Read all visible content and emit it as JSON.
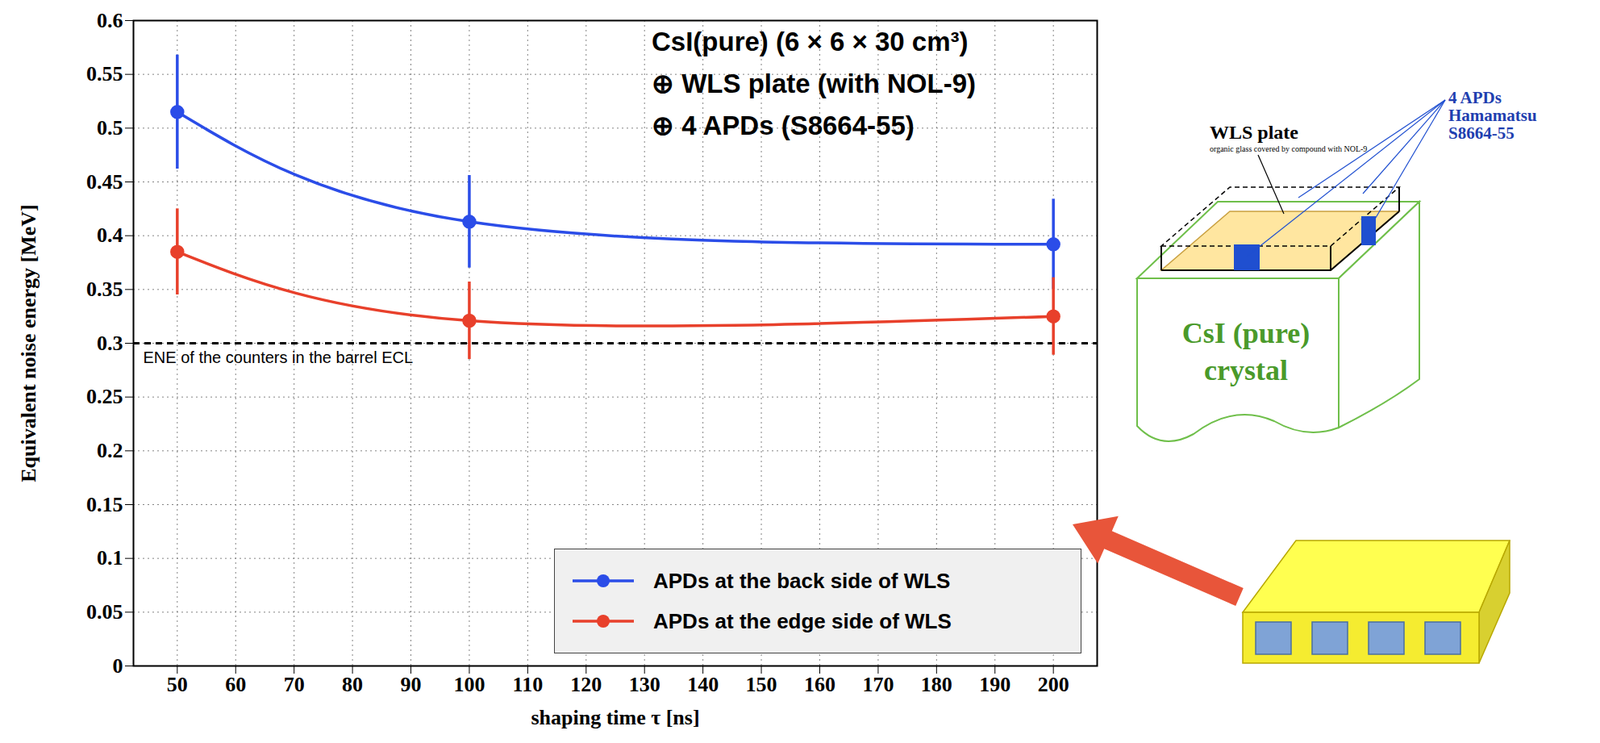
{
  "chart_data": {
    "type": "line",
    "xlabel": "shaping time τ [ns]",
    "ylabel": "Equivalent noise energy [MeV]",
    "x": [
      50,
      100,
      200
    ],
    "xlim": [
      42.5,
      207.5
    ],
    "xticks": [
      50,
      60,
      70,
      80,
      90,
      100,
      110,
      120,
      130,
      140,
      150,
      160,
      170,
      180,
      190,
      200
    ],
    "ylim": [
      0,
      0.6
    ],
    "yticks": [
      0,
      0.05,
      0.1,
      0.15,
      0.2,
      0.25,
      0.3,
      0.35,
      0.4,
      0.45,
      0.5,
      0.55,
      0.6
    ],
    "grid": true,
    "legend": "lower right",
    "series": [
      {
        "name": "APDs at the back side of WLS",
        "color": "#2b4de8",
        "marker": "circle",
        "line_style": "solid",
        "values": [
          0.515,
          0.413,
          0.392
        ],
        "errors": [
          0.053,
          0.043,
          0.042
        ]
      },
      {
        "name": "APDs at the edge side of WLS",
        "color": "#e8402b",
        "marker": "circle",
        "line_style": "solid",
        "values": [
          0.385,
          0.321,
          0.325
        ],
        "errors": [
          0.04,
          0.036,
          0.036
        ]
      }
    ],
    "annotations": [
      "CsI(pure) (6 × 6 × 30 cm³)",
      "⊕ WLS plate (with NOL-9)",
      "⊕ 4 APDs (S8664-55)"
    ],
    "reference_line": {
      "y": 0.3,
      "label": "ENE of the counters in the barrel ECL",
      "line_style": "dashed"
    }
  },
  "diagram": {
    "wls_label": "WLS plate",
    "wls_note": "organic glass covered by compound with NOL-9",
    "apd_label": [
      "4 APDs",
      "Hamamatsu",
      "S8664-55"
    ],
    "crystal_label": [
      "CsI (pure)",
      "crystal"
    ]
  }
}
